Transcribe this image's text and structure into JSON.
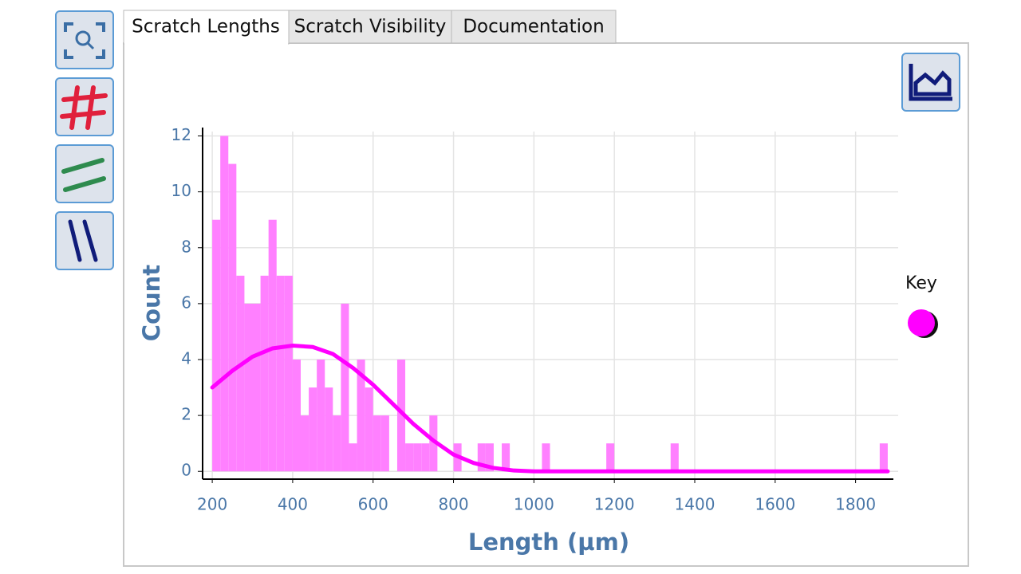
{
  "tabs": [
    "Scratch Lengths",
    "Scratch Visibility",
    "Documentation"
  ],
  "chart_data": {
    "type": "histogram",
    "x_label": "Length (µm)",
    "y_label": "Count",
    "bins": [
      200,
      220,
      240,
      260,
      280,
      300,
      320,
      340,
      360,
      380,
      400,
      420,
      440,
      460,
      480,
      500,
      520,
      540,
      560,
      580,
      600,
      620,
      640,
      660,
      680,
      700,
      720,
      740,
      760,
      780,
      800,
      820,
      840,
      860,
      880,
      900,
      920,
      940,
      960,
      980,
      1000,
      1020,
      1040,
      1060,
      1080,
      1100,
      1120,
      1140,
      1160,
      1180,
      1200,
      1220,
      1240,
      1260,
      1280,
      1300,
      1320,
      1340,
      1360,
      1380,
      1400,
      1420,
      1440,
      1460,
      1480,
      1500,
      1520,
      1540,
      1560,
      1580,
      1600,
      1620,
      1640,
      1660,
      1680,
      1700,
      1720,
      1740,
      1760,
      1780,
      1800,
      1820,
      1840,
      1860,
      1880
    ],
    "values": [
      9,
      12,
      11,
      7,
      6,
      6,
      7,
      9,
      7,
      7,
      4,
      2,
      3,
      4,
      3,
      2,
      6,
      1,
      4,
      3,
      2,
      2,
      0,
      4,
      1,
      1,
      1,
      2,
      0,
      0,
      1,
      0,
      0,
      1,
      1,
      0,
      1,
      0,
      0,
      0,
      0,
      1,
      0,
      0,
      0,
      0,
      0,
      0,
      0,
      1,
      0,
      0,
      0,
      0,
      0,
      0,
      0,
      1,
      0,
      0,
      0,
      0,
      0,
      0,
      0,
      0,
      0,
      0,
      0,
      0,
      0,
      0,
      0,
      0,
      0,
      0,
      0,
      0,
      0,
      0,
      0,
      0,
      0,
      1
    ],
    "color": "#ff80ff",
    "fit": {
      "color": "#ff00ff",
      "x": [
        200,
        250,
        300,
        350,
        400,
        450,
        500,
        550,
        600,
        650,
        700,
        750,
        800,
        850,
        900,
        950,
        1000,
        1050,
        1880
      ],
      "values": [
        3,
        3.6,
        4.1,
        4.4,
        4.5,
        4.45,
        4.2,
        3.7,
        3.1,
        2.4,
        1.7,
        1.1,
        0.6,
        0.3,
        0.12,
        0.03,
        0,
        0,
        0
      ]
    },
    "legend_title": "Key",
    "xlim": [
      176,
      1894
    ],
    "ylim": [
      -0.25,
      12.3
    ],
    "xticks": [
      200,
      400,
      600,
      800,
      1000,
      1200,
      1400,
      1600,
      1800
    ],
    "yticks": [
      0,
      2,
      4,
      6,
      8,
      10,
      12
    ],
    "grid": true
  }
}
